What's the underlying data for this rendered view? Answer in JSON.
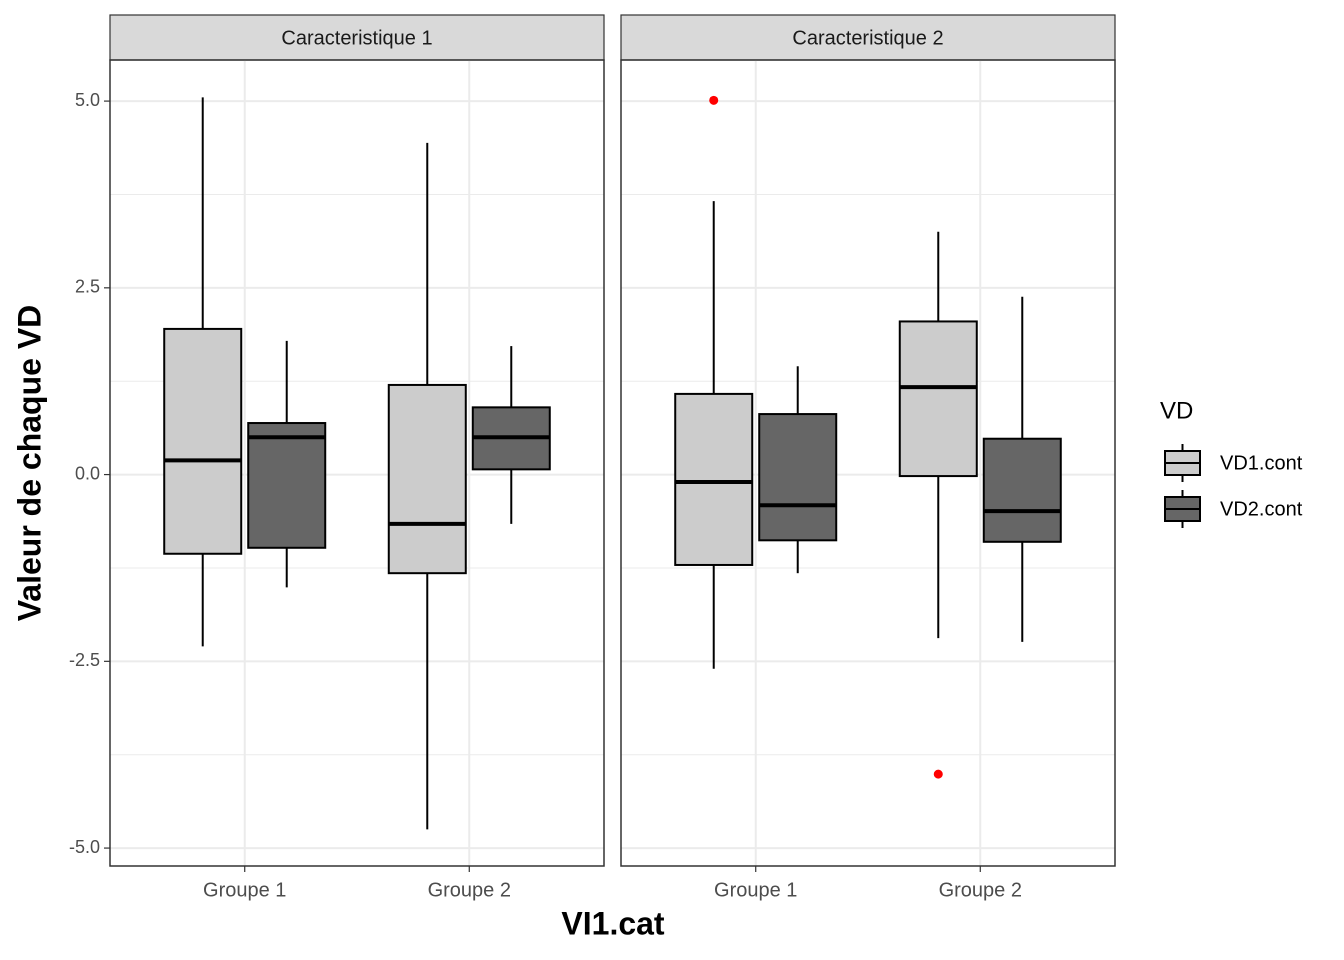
{
  "chart_data": {
    "type": "box",
    "x_label": "VI1.cat",
    "y_label": "Valeur de chaque VD",
    "legend_title": "VD",
    "categories": [
      "Groupe 1",
      "Groupe 2"
    ],
    "series": [
      {
        "name": "VD1.cont",
        "color": "#cccccc"
      },
      {
        "name": "VD2.cont",
        "color": "#666666"
      }
    ],
    "outlier_color": "#ff0000",
    "ylim": [
      -5.24,
      5.55
    ],
    "yticks": [
      {
        "value": 5,
        "label": "5.0"
      },
      2.5,
      {
        "value": 0,
        "label": "0.0"
      },
      -2.5,
      {
        "value": -5,
        "label": "-5.0"
      }
    ],
    "minor_yticks": [
      3.75,
      1.25,
      -1.25,
      -3.75
    ],
    "grid": true,
    "facets": [
      {
        "title": "Caracteristique 1",
        "boxes": [
          [
            {
              "min": -2.3,
              "q1": -1.06,
              "median": 0.19,
              "q3": 1.95,
              "max": 5.05,
              "outliers": []
            },
            {
              "min": -1.51,
              "q1": -0.98,
              "median": 0.5,
              "q3": 0.69,
              "max": 1.79,
              "outliers": []
            }
          ],
          [
            {
              "min": -4.75,
              "q1": -1.32,
              "median": -0.66,
              "q3": 1.2,
              "max": 4.44,
              "outliers": []
            },
            {
              "min": -0.66,
              "q1": 0.07,
              "median": 0.5,
              "q3": 0.9,
              "max": 1.72,
              "outliers": []
            }
          ]
        ]
      },
      {
        "title": "Caracteristique 2",
        "boxes": [
          [
            {
              "min": -2.6,
              "q1": -1.21,
              "median": -0.1,
              "q3": 1.08,
              "max": 3.66,
              "outliers": [
                5.01
              ]
            },
            {
              "min": -1.32,
              "q1": -0.88,
              "median": -0.41,
              "q3": 0.81,
              "max": 1.45,
              "outliers": []
            }
          ],
          [
            {
              "min": -2.19,
              "q1": -0.02,
              "median": 1.17,
              "q3": 2.05,
              "max": 3.25,
              "outliers": [
                -4.01
              ]
            },
            {
              "min": -2.24,
              "q1": -0.9,
              "median": -0.49,
              "q3": 0.48,
              "max": 2.38,
              "outliers": []
            }
          ]
        ]
      }
    ]
  }
}
